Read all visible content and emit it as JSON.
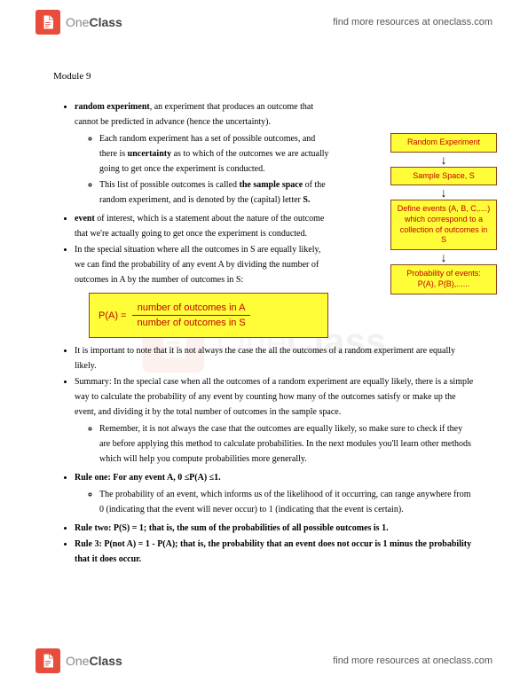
{
  "brand": {
    "name_part1": "One",
    "name_part2": "Class",
    "tagline": "find more resources at oneclass.com",
    "icon_color": "#e74c3c"
  },
  "module_title": "Module 9",
  "top_bullets": [
    {
      "html": "<b>random experiment</b>, an experiment that produces an outcome that cannot be predicted in advance (hence the uncertainty).",
      "sub": [
        "Each random experiment has a set of possible outcomes, and there is <b>uncertainty</b> as to which of the outcomes we are actually going to get once the experiment is conducted.",
        "This list of possible outcomes is called <b>the sample space</b> of the random experiment, and is denoted by the (capital) letter <b>S.</b>"
      ]
    },
    {
      "html": "<b>event</b> of interest, which is a statement about the nature of the outcome that we're actually going to get once the experiment is conducted."
    },
    {
      "html": "In the special situation where all the outcomes in S are equally likely, we can find the probability of any event A by dividing the number of outcomes in A by the number of outcomes in S:"
    }
  ],
  "formula": {
    "lhs": "P(A) =",
    "numerator": "number of outcomes in A",
    "denominator": "number of outcomes in S",
    "bg_color": "#fffd38",
    "border_color": "#8b4513",
    "text_color": "#c00000"
  },
  "bottom_bullets": [
    {
      "html": "It is important to note that it is not always the case the all the outcomes of a random experiment are equally likely."
    },
    {
      "html": "Summary: In the special case when all the outcomes of a random experiment are equally likely, there is a simple way to calculate the probability of any event by counting how many of the outcomes satisfy or make up the event, and dividing it by the total number of outcomes in the sample space.",
      "sub": [
        "Remember, it is not always the case that the outcomes are equally likely, so make sure to check if they are before applying this method to calculate probabilities. In the next modules you'll learn other methods which will help you compute probabilities more generally."
      ]
    },
    {
      "html": "<b>Rule one: For any event A, 0 ≤P(A) ≤1.</b>",
      "sub": [
        "The probability of an event, which informs us of the likelihood of it occurring, can range anywhere from 0 (indicating that the event will never occur) to 1 (indicating that the event is certain)."
      ]
    },
    {
      "html": "<b>Rule two: P(S) = 1; that is, the sum of the probabilities of all possible outcomes is 1.</b>"
    },
    {
      "html": "<b>Rule 3: P(not A) = 1 - P(A); that is, the probability that an event does not occur is 1 minus the probability that it does occur.</b>"
    }
  ],
  "flowchart": {
    "boxes": [
      "Random Experiment",
      "Sample Space, S",
      "Define events (A, B, C,....) which correspond to a collection of outcomes in S",
      "Probability of events: P(A), P(B),......"
    ],
    "bg_color": "#fffd38",
    "border_color": "#8b4513",
    "text_color": "#c00000"
  }
}
